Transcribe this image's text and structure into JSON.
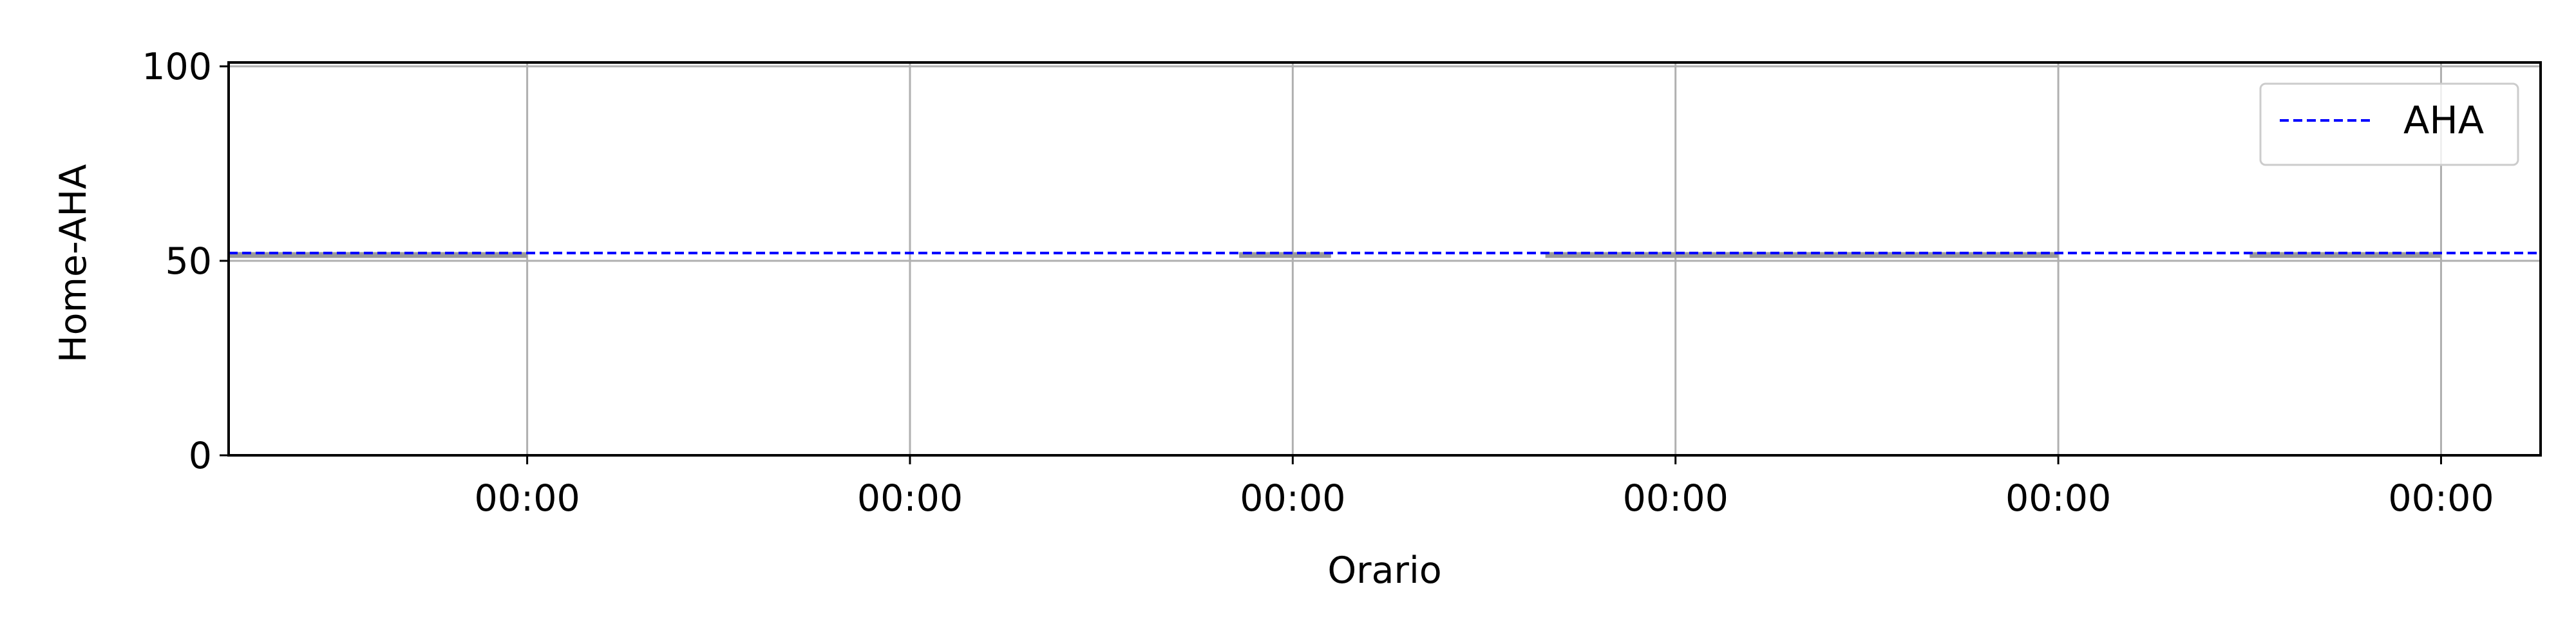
{
  "chart_data": {
    "type": "line",
    "title": "",
    "xlabel": "Orario",
    "ylabel": "Home-AHA",
    "ylim": [
      0,
      100
    ],
    "yticks": [
      0,
      50,
      100
    ],
    "x_tick_labels": [
      "00:00",
      "00:00",
      "00:00",
      "00:00",
      "00:00",
      "00:00"
    ],
    "grid": true,
    "legend_position": "top-right",
    "legend": [
      {
        "label": "AHA",
        "style": "dashed",
        "color": "#0000ff"
      }
    ],
    "reference_line": {
      "name": "AHA",
      "y": 52,
      "color": "#0000ff",
      "style": "dashed"
    },
    "series": [
      {
        "color": "#999999",
        "segments": [
          {
            "x": [
              -0.78,
              -0.0
            ],
            "y": [
              51.5,
              51.5
            ]
          },
          {
            "x": [
              1.86,
              2.1
            ],
            "y": [
              51.5,
              51.5
            ]
          },
          {
            "x": [
              2.66,
              4.0
            ],
            "y": [
              51.5,
              51.5
            ]
          },
          {
            "x": [
              4.5,
              5.0
            ],
            "y": [
              51.5,
              51.5
            ]
          }
        ]
      }
    ],
    "x_range": [
      -0.78,
      5.26
    ]
  }
}
